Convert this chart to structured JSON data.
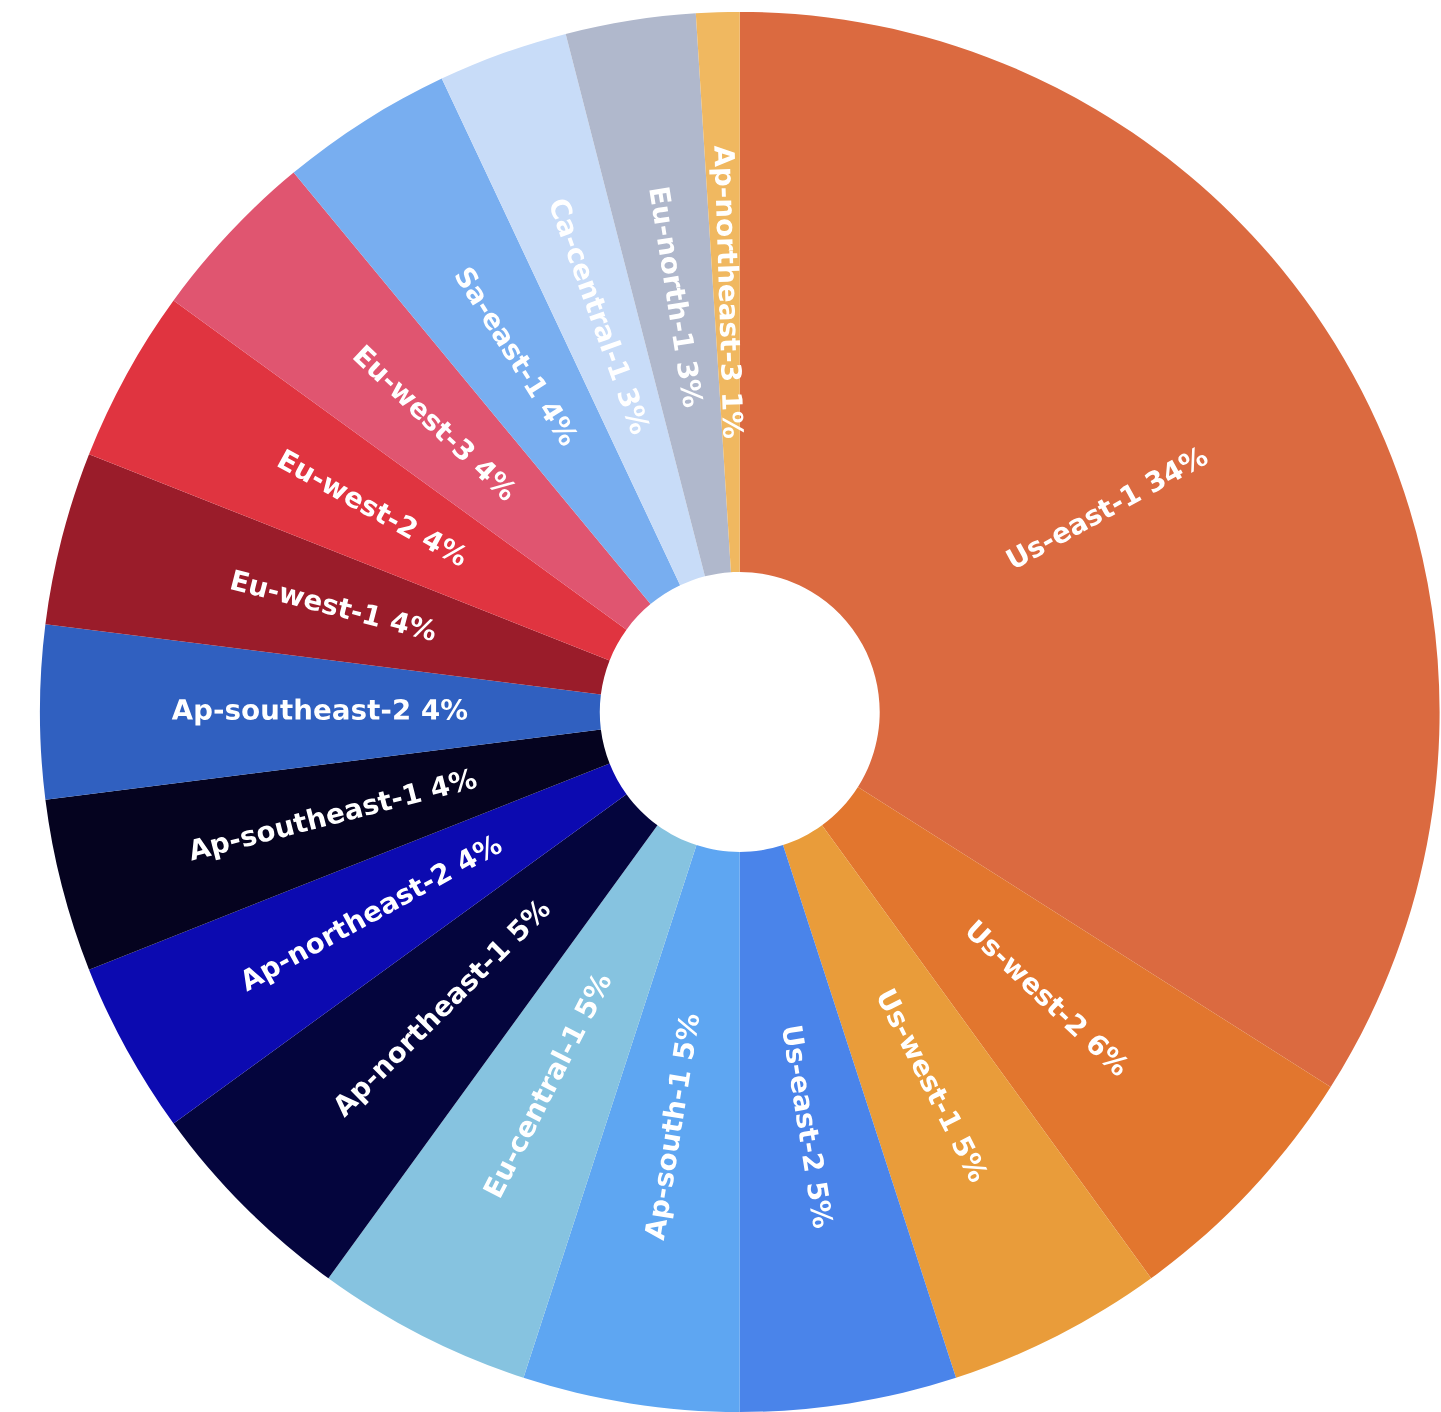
{
  "chart_data": {
    "type": "donut",
    "categories": [
      "Us-east-1",
      "Us-west-2",
      "Us-west-1",
      "Us-east-2",
      "Ap-south-1",
      "Eu-central-1",
      "Ap-northeast-1",
      "Ap-northeast-2",
      "Ap-southeast-1",
      "Ap-southeast-2",
      "Eu-west-1",
      "Eu-west-2",
      "Eu-west-3",
      "Sa-east-1",
      "Ca-central-1",
      "Eu-north-1",
      "Ap-northeast-3"
    ],
    "values": [
      34,
      6,
      5,
      5,
      5,
      5,
      5,
      4,
      4,
      4,
      4,
      4,
      4,
      4,
      3,
      3,
      1
    ],
    "value_labels": [
      "34%",
      "6%",
      "5%",
      "5%",
      "5%",
      "5%",
      "5%",
      "4%",
      "4%",
      "4%",
      "4%",
      "4%",
      "4%",
      "4%",
      "3%",
      "3%",
      "1%"
    ],
    "colors": [
      "#db6a40",
      "#e2762e",
      "#e99c3a",
      "#4a84ea",
      "#5ea6f2",
      "#86c3e0",
      "#04053d",
      "#0c0ab0",
      "#05031f",
      "#3060c0",
      "#9a1c2a",
      "#e03440",
      "#e05570",
      "#78aef0",
      "#c8dcf8",
      "#b0b8cc",
      "#f0b860"
    ]
  }
}
